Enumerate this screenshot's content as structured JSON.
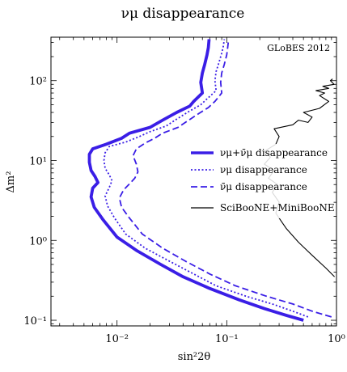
{
  "chart_data": {
    "type": "line",
    "title": "νμ disappearance",
    "xlabel": "sin²2θ",
    "ylabel": "Δm²",
    "xscale": "log",
    "yscale": "log",
    "xlim": [
      0.0025,
      1.0
    ],
    "ylim": [
      0.085,
      350
    ],
    "xticks": [
      {
        "value": 0.01,
        "label": "10⁻²"
      },
      {
        "value": 0.1,
        "label": "10⁻¹"
      },
      {
        "value": 1.0,
        "label": "10⁰"
      }
    ],
    "yticks": [
      {
        "value": 0.1,
        "label": "10⁻¹"
      },
      {
        "value": 1.0,
        "label": "10⁰"
      },
      {
        "value": 10.0,
        "label": "10¹"
      },
      {
        "value": 100.0,
        "label": "10²"
      }
    ],
    "annotation": "GLoBES 2012",
    "grid": false,
    "legend_position": "center-right",
    "series": [
      {
        "name": "νμ+ν̄μ disappearance",
        "style": "solid-thick",
        "color": "#3a1ee6",
        "points": [
          [
            0.5,
            0.1
          ],
          [
            0.35,
            0.115
          ],
          [
            0.22,
            0.14
          ],
          [
            0.13,
            0.18
          ],
          [
            0.07,
            0.25
          ],
          [
            0.04,
            0.35
          ],
          [
            0.025,
            0.5
          ],
          [
            0.015,
            0.75
          ],
          [
            0.01,
            1.1
          ],
          [
            0.0075,
            1.8
          ],
          [
            0.0062,
            2.6
          ],
          [
            0.0058,
            3.5
          ],
          [
            0.006,
            4.5
          ],
          [
            0.0067,
            5.3
          ],
          [
            0.0063,
            6.3
          ],
          [
            0.0058,
            7.5
          ],
          [
            0.0056,
            9.5
          ],
          [
            0.0056,
            12
          ],
          [
            0.006,
            14
          ],
          [
            0.008,
            16
          ],
          [
            0.011,
            19
          ],
          [
            0.013,
            22
          ],
          [
            0.02,
            26
          ],
          [
            0.026,
            32
          ],
          [
            0.035,
            40
          ],
          [
            0.046,
            48
          ],
          [
            0.05,
            55
          ],
          [
            0.06,
            70
          ],
          [
            0.058,
            95
          ],
          [
            0.06,
            125
          ],
          [
            0.063,
            160
          ],
          [
            0.066,
            210
          ],
          [
            0.068,
            260
          ],
          [
            0.069,
            330
          ]
        ]
      },
      {
        "name": "νμ disappearance",
        "style": "dotted",
        "color": "#3a1ee6",
        "points": [
          [
            0.55,
            0.11
          ],
          [
            0.4,
            0.13
          ],
          [
            0.26,
            0.16
          ],
          [
            0.15,
            0.2
          ],
          [
            0.08,
            0.27
          ],
          [
            0.05,
            0.38
          ],
          [
            0.03,
            0.55
          ],
          [
            0.018,
            0.8
          ],
          [
            0.012,
            1.2
          ],
          [
            0.0095,
            1.9
          ],
          [
            0.0082,
            2.7
          ],
          [
            0.0078,
            3.6
          ],
          [
            0.0085,
            4.6
          ],
          [
            0.009,
            5.6
          ],
          [
            0.0085,
            6.6
          ],
          [
            0.0078,
            8
          ],
          [
            0.0076,
            10
          ],
          [
            0.0078,
            12.5
          ],
          [
            0.0085,
            15
          ],
          [
            0.012,
            17
          ],
          [
            0.016,
            20
          ],
          [
            0.02,
            23
          ],
          [
            0.028,
            27
          ],
          [
            0.035,
            33
          ],
          [
            0.045,
            41
          ],
          [
            0.058,
            50
          ],
          [
            0.065,
            58
          ],
          [
            0.08,
            75
          ],
          [
            0.078,
            100
          ],
          [
            0.08,
            130
          ],
          [
            0.085,
            170
          ],
          [
            0.09,
            220
          ],
          [
            0.093,
            270
          ],
          [
            0.095,
            330
          ]
        ]
      },
      {
        "name": "ν̄μ disappearance",
        "style": "dashed",
        "color": "#3a1ee6",
        "points": [
          [
            0.9,
            0.11
          ],
          [
            0.6,
            0.13
          ],
          [
            0.4,
            0.16
          ],
          [
            0.23,
            0.2
          ],
          [
            0.12,
            0.27
          ],
          [
            0.07,
            0.38
          ],
          [
            0.042,
            0.55
          ],
          [
            0.026,
            0.8
          ],
          [
            0.017,
            1.2
          ],
          [
            0.013,
            1.9
          ],
          [
            0.011,
            2.6
          ],
          [
            0.0105,
            3.4
          ],
          [
            0.0115,
            4.3
          ],
          [
            0.013,
            5.1
          ],
          [
            0.0145,
            6
          ],
          [
            0.0155,
            7.2
          ],
          [
            0.015,
            9
          ],
          [
            0.014,
            11.5
          ],
          [
            0.015,
            14
          ],
          [
            0.018,
            16.5
          ],
          [
            0.022,
            19
          ],
          [
            0.026,
            22
          ],
          [
            0.036,
            26
          ],
          [
            0.045,
            32
          ],
          [
            0.056,
            39
          ],
          [
            0.068,
            46
          ],
          [
            0.078,
            55
          ],
          [
            0.09,
            70
          ],
          [
            0.088,
            95
          ],
          [
            0.09,
            125
          ],
          [
            0.095,
            160
          ],
          [
            0.1,
            210
          ],
          [
            0.102,
            260
          ],
          [
            0.104,
            330
          ]
        ]
      },
      {
        "name": "SciBooNE+MiniBooNE",
        "style": "solid-thin",
        "color": "#000000",
        "points": [
          [
            0.96,
            0.35
          ],
          [
            0.8,
            0.45
          ],
          [
            0.6,
            0.65
          ],
          [
            0.45,
            0.95
          ],
          [
            0.35,
            1.4
          ],
          [
            0.3,
            1.9
          ],
          [
            0.28,
            2.2
          ],
          [
            0.3,
            3
          ],
          [
            0.26,
            4
          ],
          [
            0.29,
            5
          ],
          [
            0.24,
            6
          ],
          [
            0.27,
            7.5
          ],
          [
            0.22,
            9
          ],
          [
            0.25,
            11
          ],
          [
            0.22,
            13
          ],
          [
            0.28,
            16
          ],
          [
            0.3,
            20
          ],
          [
            0.27,
            25
          ],
          [
            0.4,
            28
          ],
          [
            0.45,
            32
          ],
          [
            0.55,
            30
          ],
          [
            0.6,
            35
          ],
          [
            0.5,
            40
          ],
          [
            0.7,
            45
          ],
          [
            0.85,
            55
          ],
          [
            0.7,
            65
          ],
          [
            0.78,
            70
          ],
          [
            0.65,
            75
          ],
          [
            0.85,
            80
          ],
          [
            0.75,
            85
          ],
          [
            0.95,
            90
          ],
          [
            0.88,
            100
          ],
          [
            0.92,
            105
          ]
        ]
      }
    ]
  }
}
